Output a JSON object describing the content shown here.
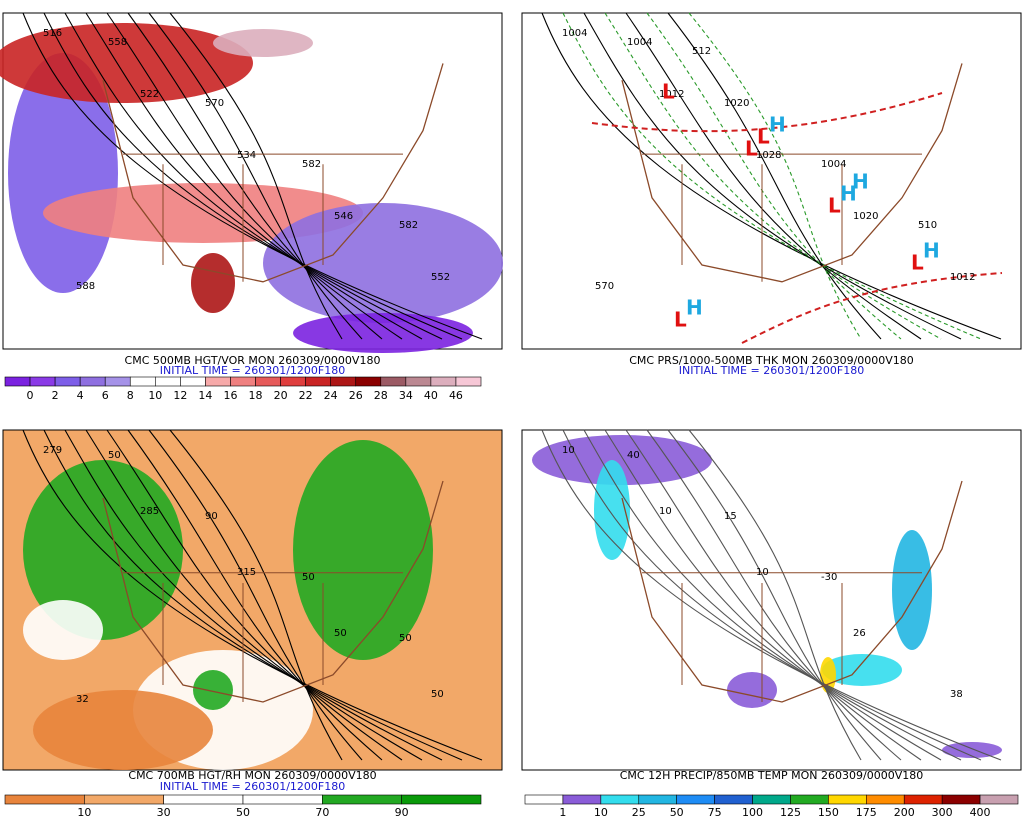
{
  "panels": [
    {
      "caption": "CMC 500MB HGT/VOR MON 260309/0000V180",
      "initial": "INITIAL TIME = 260301/1200F180",
      "colorbar": {
        "labels": [
          "0",
          "2",
          "4",
          "6",
          "8",
          "10",
          "12",
          "14",
          "16",
          "18",
          "20",
          "22",
          "24",
          "26",
          "28",
          "34",
          "40",
          "46"
        ],
        "colors": [
          "#7b22e0",
          "#8a3ae6",
          "#7d5ee8",
          "#8e6fe0",
          "#a592e8",
          "#ffffff",
          "#ffffff",
          "#ffffff",
          "#f6a9a9",
          "#ef8080",
          "#e65a5a",
          "#df3e3e",
          "#c92424",
          "#ad1616",
          "#8b0000",
          "#9b5a64",
          "#bb8892",
          "#dcaebd",
          "#f6c7d6"
        ]
      },
      "contours": [
        "516",
        "522",
        "534",
        "546",
        "552",
        "558",
        "570",
        "582",
        "582",
        "588"
      ]
    },
    {
      "caption": "CMC PRS/1000-500MB THK MON 260309/0000V180",
      "initial": "INITIAL TIME = 260301/1200F180",
      "colorbar": null,
      "contours": [
        "1004",
        "1012",
        "1028",
        "1020",
        "1012",
        "1004",
        "1020",
        "1004",
        "510",
        "570",
        "512"
      ],
      "symbols": [
        "L",
        "L",
        "L",
        "L",
        "L",
        "L",
        "H",
        "H",
        "H",
        "H",
        "H"
      ]
    },
    {
      "caption": "CMC 700MB HGT/RH MON 260309/0000V180",
      "initial": "INITIAL TIME = 260301/1200F180",
      "colorbar": {
        "labels": [
          "10",
          "30",
          "50",
          "70",
          "90"
        ],
        "colors": [
          "#e8843c",
          "#f2a868",
          "#ffffff",
          "#ffffff",
          "#22a822",
          "#0a9a0a"
        ]
      },
      "contours": [
        "279",
        "285",
        "315",
        "50",
        "50",
        "50",
        "90",
        "50",
        "50",
        "32"
      ]
    },
    {
      "caption": "CMC 12H PRECIP/850MB TEMP MON 260309/0000V180",
      "initial": null,
      "colorbar": {
        "labels": [
          "1",
          "10",
          "25",
          "50",
          "75",
          "100",
          "125",
          "150",
          "175",
          "200",
          "300",
          "400"
        ],
        "colors": [
          "#ffffff",
          "#8a5cd8",
          "#33dded",
          "#22b6e2",
          "#1e8cf5",
          "#2060d0",
          "#00a88a",
          "#22aa22",
          "#ffd700",
          "#ff8c00",
          "#dd2200",
          "#8b0000",
          "#c8a0b0"
        ]
      },
      "contours": [
        "10",
        "10",
        "10",
        "26",
        "38",
        "40",
        "15",
        "-30"
      ]
    }
  ]
}
